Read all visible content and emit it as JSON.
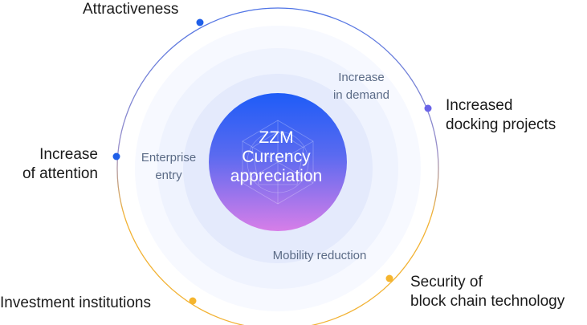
{
  "center": {
    "text": "ZZM\nCurrency\nappreciation"
  },
  "outer_labels": {
    "attractiveness": "Attractiveness",
    "increased_docking": "Increased\ndocking projects",
    "increase_attention": "Increase\nof attention",
    "security": "Security of\nblock chain technology",
    "investment": "Investment institutions"
  },
  "inner_labels": {
    "increase_demand": "Increase\nin demand",
    "enterprise_entry": "Enterprise\nentry",
    "mobility_reduction": "Mobility reduction"
  },
  "colors": {
    "ring_blue": "#4f74e6",
    "ring_orange": "#f2b233",
    "dot_blue": "#1f5fe8",
    "dot_purple": "#6a63e8",
    "dot_orange": "#f5b52e",
    "core_top": "#1e5cf7",
    "core_bottom": "#d77ee8",
    "halo_outer": "#f6f8ff",
    "halo_mid": "#eef2fe",
    "halo_inner": "#e3e9fc"
  }
}
